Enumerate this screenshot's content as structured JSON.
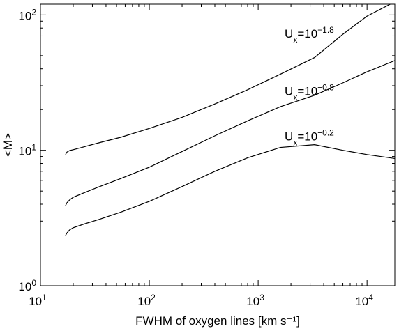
{
  "chart_data": {
    "type": "line",
    "xlabel": "FWHM of oxygen lines [km s⁻¹]",
    "ylabel": "<M>",
    "x_scale": "log",
    "y_scale": "log",
    "xlim": [
      10,
      18000
    ],
    "ylim": [
      1,
      120
    ],
    "grid": false,
    "x_ticks": [
      {
        "value": 10,
        "base": "10",
        "exp": "1"
      },
      {
        "value": 100,
        "base": "10",
        "exp": "2"
      },
      {
        "value": 1000,
        "base": "10",
        "exp": "3"
      },
      {
        "value": 10000,
        "base": "10",
        "exp": "4"
      }
    ],
    "y_ticks": [
      {
        "value": 1,
        "base": "10",
        "exp": "0"
      },
      {
        "value": 10,
        "base": "10",
        "exp": "1"
      },
      {
        "value": 100,
        "base": "10",
        "exp": "2"
      }
    ],
    "series": [
      {
        "name": "U_x=10^-1.8",
        "label_main": "U",
        "label_sub": "x",
        "label_eq": "=10",
        "label_sup": "−1.8",
        "label_at": [
          1750,
          68
        ],
        "x": [
          17,
          17.5,
          18.5,
          20,
          25,
          35,
          55,
          100,
          200,
          400,
          800,
          1600,
          3300,
          6000,
          10000,
          18000
        ],
        "y": [
          9.3,
          9.7,
          9.95,
          10.1,
          10.6,
          11.4,
          12.5,
          14.5,
          17.5,
          22,
          28,
          36.5,
          48.5,
          72,
          98,
          125
        ]
      },
      {
        "name": "U_x=10^-0.8",
        "label_main": "U",
        "label_sub": "x",
        "label_eq": "=10",
        "label_sup": "−0.8",
        "label_at": [
          1750,
          25.5
        ],
        "x": [
          17,
          17.5,
          18.5,
          20,
          25,
          35,
          55,
          100,
          200,
          400,
          800,
          1600,
          3300,
          6000,
          10000,
          18000
        ],
        "y": [
          3.9,
          4.1,
          4.3,
          4.5,
          4.85,
          5.4,
          6.2,
          7.5,
          9.8,
          12.8,
          16.5,
          21,
          25.5,
          31.5,
          38,
          46
        ]
      },
      {
        "name": "U_x=10^-0.2",
        "label_main": "U",
        "label_sub": "x",
        "label_eq": "=10",
        "label_sup": "−0.2",
        "label_at": [
          1750,
          11.8
        ],
        "x": [
          17,
          17.5,
          18.5,
          20,
          25,
          35,
          55,
          100,
          200,
          400,
          800,
          1600,
          3300,
          6000,
          10000,
          18000
        ],
        "y": [
          2.35,
          2.45,
          2.58,
          2.68,
          2.85,
          3.1,
          3.5,
          4.2,
          5.4,
          7.0,
          8.8,
          10.5,
          11.0,
          10.0,
          9.3,
          8.7
        ]
      }
    ]
  }
}
